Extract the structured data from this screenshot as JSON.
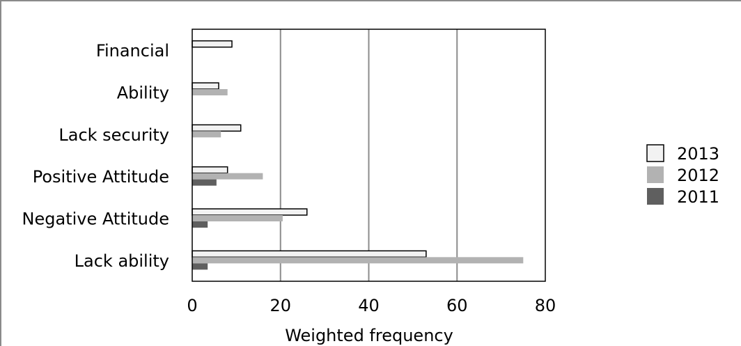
{
  "chart_data": {
    "type": "bar",
    "orientation": "horizontal",
    "categories": [
      "Financial",
      "Ability",
      "Lack security",
      "Positive Attitude",
      "Negative Attitude",
      "Lack ability"
    ],
    "series": [
      {
        "name": "2013",
        "values": [
          9,
          6,
          11,
          8,
          26,
          53
        ],
        "color": "#f2f2f2"
      },
      {
        "name": "2012",
        "values": [
          0,
          8,
          6.5,
          16,
          20.5,
          75
        ],
        "color": "#b2b2b2"
      },
      {
        "name": "2011",
        "values": [
          0,
          0,
          0,
          5.5,
          3.5,
          3.5
        ],
        "color": "#5f5f5f"
      }
    ],
    "title": "",
    "xlabel": "Weighted frequency",
    "ylabel": "",
    "xlim": [
      0,
      80
    ],
    "xticks": [
      "0",
      "20",
      "40",
      "60",
      "80"
    ],
    "grid": "vertical",
    "legend": "right"
  }
}
